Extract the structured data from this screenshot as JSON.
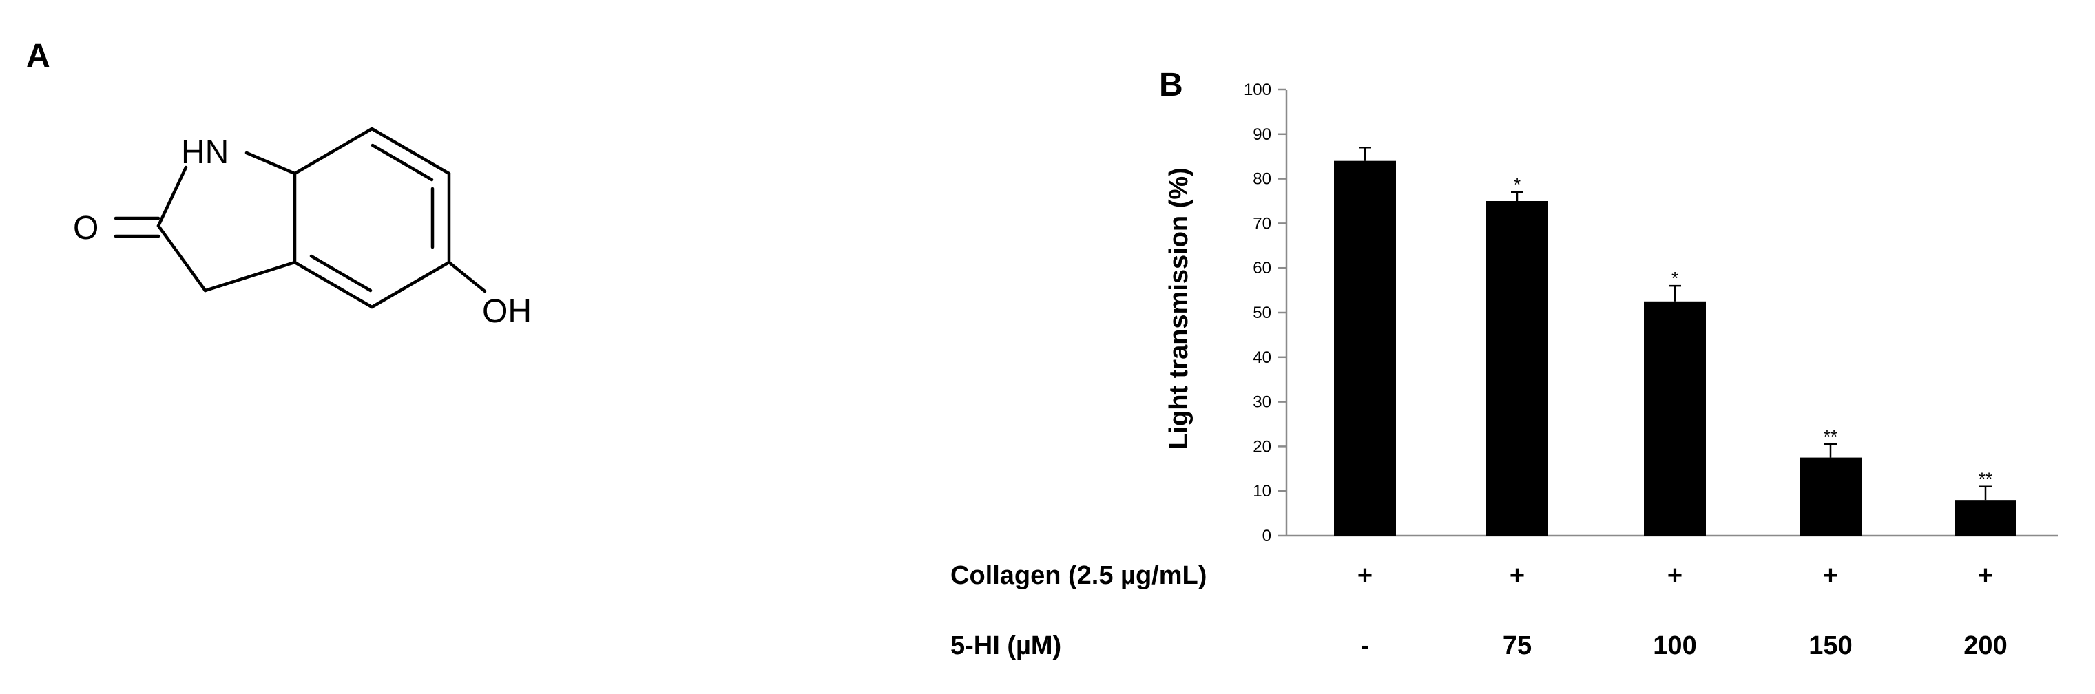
{
  "panels": {
    "a_label": "A",
    "b_label": "B"
  },
  "structure": {
    "atoms": {
      "nh": "HN",
      "o": "O",
      "oh": "OH"
    }
  },
  "chart_data": {
    "type": "bar",
    "title": "",
    "xlabel": "",
    "ylabel": "Light transmission (%)",
    "ylim": [
      0,
      100
    ],
    "yticks": [
      0,
      10,
      20,
      30,
      40,
      50,
      60,
      70,
      80,
      90,
      100
    ],
    "grid": false,
    "legend": "none",
    "bar_color": "#000000",
    "categories": [
      "-",
      "75",
      "100",
      "150",
      "200"
    ],
    "values": [
      84,
      75,
      52.5,
      17.5,
      8
    ],
    "errors": [
      3,
      2,
      3.5,
      3,
      3
    ],
    "significance": [
      "",
      "*",
      "*",
      "**",
      "**"
    ],
    "conditions": [
      {
        "label": "Collagen (2.5 µg/mL)",
        "values": [
          "+",
          "+",
          "+",
          "+",
          "+"
        ]
      },
      {
        "label": "5-HI (µM)",
        "values": [
          "-",
          "75",
          "100",
          "150",
          "200"
        ]
      }
    ]
  }
}
